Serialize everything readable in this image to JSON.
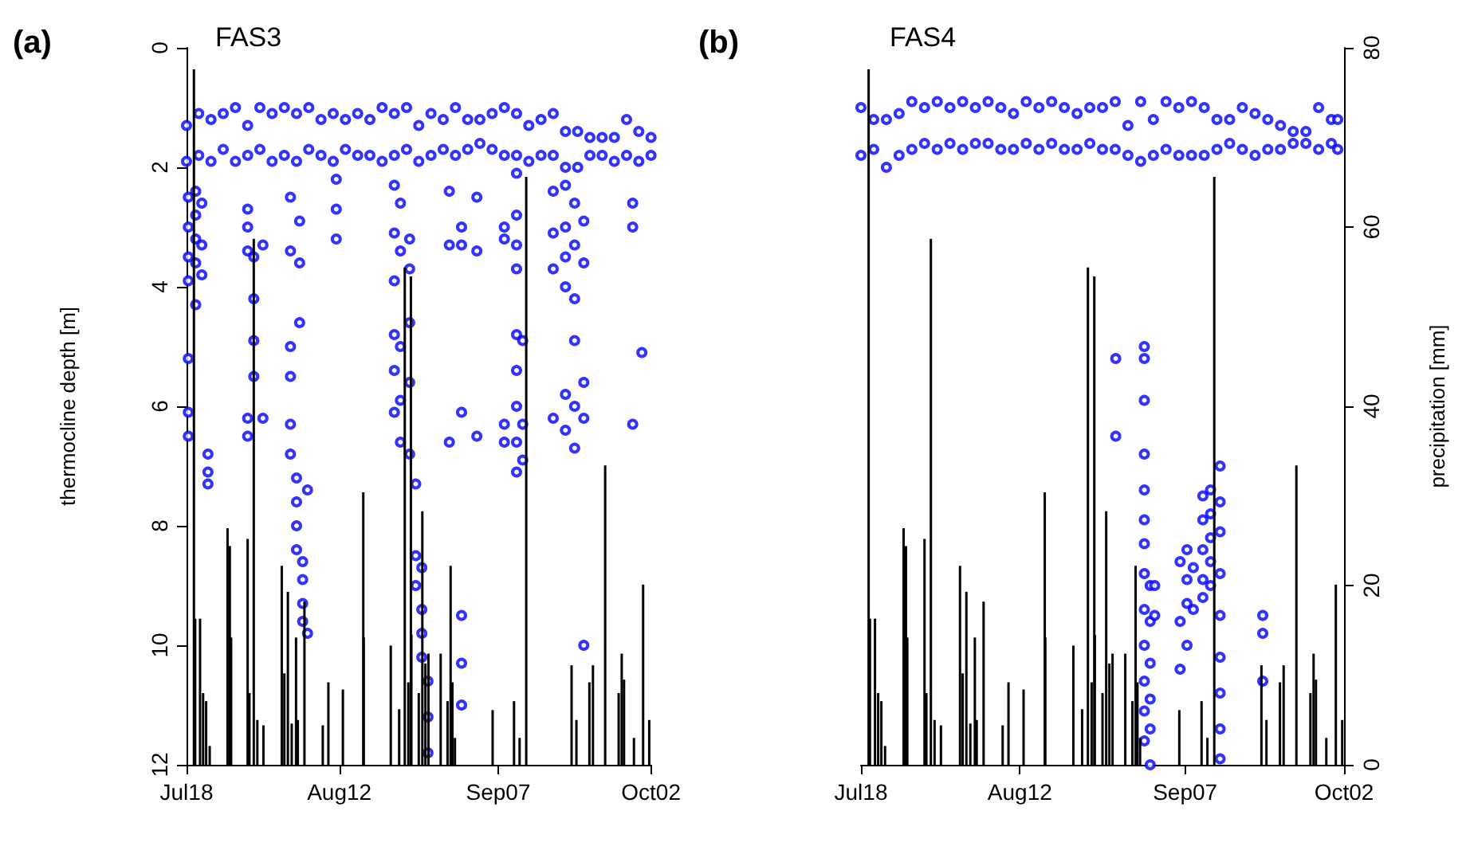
{
  "chart_data": [
    {
      "type": "scatter",
      "title": "(a)",
      "subtitle": "FAS3",
      "ylabel": "thermocline depth [m]",
      "xlim": [
        "--07-18",
        "--10-02"
      ],
      "xticks": [
        {
          "value": "--07-18",
          "label": "Jul18"
        },
        {
          "value": "--08-12",
          "label": "Aug12"
        },
        {
          "value": "--09-07",
          "label": "Sep07"
        },
        {
          "value": "--10-02",
          "label": "Oct02"
        }
      ],
      "ylim": [
        12,
        0
      ],
      "yticks": [
        0,
        2,
        4,
        6,
        8,
        10,
        12
      ],
      "y2lim": [
        0,
        80
      ],
      "tick_labels": "xy",
      "grid": false,
      "marker": "circle",
      "series": [
        {
          "color": "#0000ff",
          "x": [
            "--07-18",
            "--07-18",
            "--07-20",
            "--07-20",
            "--07-22",
            "--07-22",
            "--07-24",
            "--07-24",
            "--07-26",
            "--07-26",
            "--07-28",
            "--07-28",
            "--07-30",
            "--07-30",
            "--08-01",
            "--08-01",
            "--08-03",
            "--08-03",
            "--08-05",
            "--08-05",
            "--08-07",
            "--08-07",
            "--08-09",
            "--08-09",
            "--08-11",
            "--08-11",
            "--08-13",
            "--08-13",
            "--08-15",
            "--08-15",
            "--08-17",
            "--08-17",
            "--08-19",
            "--08-19",
            "--08-21",
            "--08-21",
            "--08-23",
            "--08-23",
            "--08-25",
            "--08-25",
            "--08-27",
            "--08-27",
            "--08-29",
            "--08-29",
            "--08-31",
            "--08-31",
            "--09-02",
            "--09-02",
            "--09-04",
            "--09-04",
            "--09-06",
            "--09-06",
            "--09-08",
            "--09-08",
            "--09-10",
            "--09-10",
            "--09-12",
            "--09-12",
            "--09-14",
            "--09-14",
            "--09-16",
            "--09-16",
            "--09-18",
            "--09-18",
            "--09-20",
            "--09-20",
            "--09-22",
            "--09-22",
            "--09-24",
            "--09-24",
            "--09-26",
            "--09-26",
            "--09-28",
            "--09-28",
            "--09-30",
            "--09-30",
            "--10-02",
            "--10-02"
          ],
          "values": [
            1.3,
            1.9,
            1.1,
            1.8,
            1.2,
            1.9,
            1.1,
            1.7,
            1.0,
            1.9,
            1.3,
            1.8,
            1.0,
            1.7,
            1.1,
            1.9,
            1.0,
            1.8,
            1.1,
            1.9,
            1.0,
            1.7,
            1.2,
            1.8,
            1.1,
            1.9,
            1.2,
            1.7,
            1.1,
            1.8,
            1.2,
            1.8,
            1.0,
            1.9,
            1.1,
            1.8,
            1.0,
            1.7,
            1.3,
            1.9,
            1.1,
            1.8,
            1.2,
            1.7,
            1.0,
            1.8,
            1.2,
            1.7,
            1.2,
            1.6,
            1.1,
            1.7,
            1.0,
            1.8,
            1.1,
            1.8,
            1.3,
            1.9,
            1.2,
            1.8,
            1.1,
            1.8,
            1.4,
            2.0,
            1.4,
            2.0,
            1.5,
            1.8,
            1.5,
            1.8,
            1.5,
            1.9,
            1.2,
            1.8,
            1.4,
            1.9,
            1.5,
            1.8
          ]
        },
        {
          "color": "#0000ff",
          "x": [
            "--07-18T07:00",
            "--07-18T07:00",
            "--07-18T07:00",
            "--07-18T07:00",
            "--07-18T07:00",
            "--07-18T07:00",
            "--07-18T07:00",
            "--07-19T12:00",
            "--07-19T12:00",
            "--07-19T12:00",
            "--07-19T12:00",
            "--07-19T12:00",
            "--07-20T12:00",
            "--07-20T12:00",
            "--07-20T12:00",
            "--07-21T12:00",
            "--07-21T12:00",
            "--07-21T12:00",
            "--07-28",
            "--07-28",
            "--07-28",
            "--07-28",
            "--07-28",
            "--07-29",
            "--07-29",
            "--07-29",
            "--07-29",
            "--07-30T12:00",
            "--07-30T12:00",
            "--08-04",
            "--08-04",
            "--08-04",
            "--08-04",
            "--08-04",
            "--08-04",
            "--08-05",
            "--08-05",
            "--08-05",
            "--08-05",
            "--08-05T12:00",
            "--08-05T12:00",
            "--08-05T12:00",
            "--08-06",
            "--08-06",
            "--08-06",
            "--08-06",
            "--08-06T19:00",
            "--08-06T19:00",
            "--08-11T12:00",
            "--08-11T12:00",
            "--08-11T12:00",
            "--08-21",
            "--08-21",
            "--08-21",
            "--08-21",
            "--08-21",
            "--08-21",
            "--08-22",
            "--08-22",
            "--08-22",
            "--08-22",
            "--08-22",
            "--08-23T12:00",
            "--08-23T12:00",
            "--08-23T12:00",
            "--08-23T12:00",
            "--08-23T12:00",
            "--08-24T12:00",
            "--08-24T12:00",
            "--08-24T12:00",
            "--08-25T12:00",
            "--08-25T12:00",
            "--08-25T12:00",
            "--08-25T12:00",
            "--08-26T12:00",
            "--08-26T12:00",
            "--08-26T12:00",
            "--08-30",
            "--08-30",
            "--08-30",
            "--09-01",
            "--09-01",
            "--09-01",
            "--09-01",
            "--09-01",
            "--09-01",
            "--09-03T12:00",
            "--09-03T12:00",
            "--09-03T12:00",
            "--09-08",
            "--09-08",
            "--09-08",
            "--09-08",
            "--09-10",
            "--09-10",
            "--09-10",
            "--09-10",
            "--09-10",
            "--09-10",
            "--09-10",
            "--09-10",
            "--09-10",
            "--09-11",
            "--09-11",
            "--09-11",
            "--09-16",
            "--09-16",
            "--09-16",
            "--09-16",
            "--09-18",
            "--09-18",
            "--09-18",
            "--09-18",
            "--09-18",
            "--09-18",
            "--09-19T12:00",
            "--09-19T12:00",
            "--09-19T12:00",
            "--09-19T12:00",
            "--09-19T12:00",
            "--09-19T12:00",
            "--09-21",
            "--09-21",
            "--09-21",
            "--09-21",
            "--09-21",
            "--09-29",
            "--09-29",
            "--09-29",
            "--09-30T12:00"
          ],
          "values": [
            2.5,
            3.0,
            3.5,
            3.9,
            5.2,
            6.1,
            6.5,
            2.4,
            2.8,
            3.2,
            3.6,
            4.3,
            2.6,
            3.3,
            3.8,
            6.8,
            7.1,
            7.3,
            2.7,
            3.0,
            3.4,
            6.2,
            6.5,
            3.5,
            4.2,
            4.9,
            5.5,
            3.3,
            6.2,
            2.5,
            3.4,
            5.0,
            5.5,
            6.3,
            6.8,
            7.2,
            7.6,
            8.0,
            8.4,
            2.9,
            3.6,
            4.6,
            8.6,
            8.9,
            9.3,
            9.6,
            7.4,
            9.8,
            2.2,
            2.7,
            3.2,
            2.3,
            3.1,
            3.9,
            4.8,
            5.4,
            6.1,
            2.6,
            3.4,
            5.0,
            5.9,
            6.6,
            3.2,
            3.7,
            4.6,
            5.6,
            6.8,
            7.3,
            8.5,
            9.0,
            8.7,
            9.4,
            9.8,
            10.2,
            10.6,
            11.2,
            11.8,
            2.4,
            3.3,
            6.6,
            3.0,
            3.3,
            6.1,
            9.5,
            10.3,
            11.0,
            2.5,
            3.4,
            6.5,
            3.0,
            3.2,
            6.3,
            6.6,
            2.1,
            2.8,
            3.3,
            3.7,
            4.8,
            5.4,
            6.0,
            6.6,
            7.1,
            4.9,
            6.3,
            6.9,
            2.4,
            3.1,
            3.7,
            6.2,
            2.3,
            3.0,
            3.5,
            4.0,
            5.8,
            6.4,
            2.6,
            3.3,
            4.2,
            4.9,
            6.0,
            6.7,
            2.9,
            3.6,
            5.6,
            6.2,
            10.0,
            2.6,
            3.0,
            6.3,
            5.1
          ]
        },
        {
          "type": "bar",
          "axis": "y2",
          "color": "#000000",
          "x": [
            "--07-19T05:00",
            "--07-19T10:00",
            "--07-20T05:00",
            "--07-20T17:00",
            "--07-21T05:00",
            "--07-21T19:00",
            "--07-24T17:00",
            "--07-25T02:00",
            "--07-25T07:00",
            "--07-28",
            "--07-28T07:00",
            "--07-29",
            "--07-29T14:00",
            "--07-30T14:00",
            "--08-02T14:00",
            "--08-03",
            "--08-03T14:00",
            "--08-04T05:00",
            "--08-04T22:00",
            "--08-05T05:00",
            "--08-06T07:00",
            "--08-09T07:00",
            "--08-10T05:00",
            "--08-12T14:00",
            "--08-15T22:00",
            "--08-16",
            "--08-20T10:00",
            "--08-21T19:00",
            "--08-22T17:00",
            "--08-23T07:00",
            "--08-23T17:00",
            "--08-23T19:00",
            "--08-25",
            "--08-25T14:00",
            "--08-26T02:00",
            "--08-26T14:00",
            "--08-28T14:00",
            "--08-29T17:00",
            "--08-30T05:00",
            "--08-30T12:00",
            "--08-30T22:00",
            "--09-06T02:00",
            "--09-09T14:00",
            "--09-10T12:00",
            "--09-11T14:00",
            "--09-19",
            "--09-19T19:00",
            "--09-21T22:00",
            "--09-22T12:00",
            "--09-24T12:00",
            "--09-26T17:00",
            "--09-27T05:00",
            "--09-27T14:00",
            "--09-29T05:00",
            "--09-30T17:00",
            "--10-01T17:00"
          ],
          "values": [
            77.6,
            16.3,
            16.3,
            8.0,
            7.1,
            2.1,
            26.4,
            24.4,
            14.2,
            25.2,
            8.0,
            58.7,
            5.0,
            4.4,
            22.2,
            10.2,
            19.3,
            4.6,
            14.2,
            5.0,
            18.2,
            4.4,
            9.2,
            8.4,
            30.4,
            14.2,
            13.3,
            6.2,
            55.5,
            9.2,
            54.5,
            14.5,
            8.0,
            28.3,
            11.3,
            12.4,
            12.4,
            7.1,
            22.2,
            9.2,
            3.0,
            6.1,
            7.1,
            3.0,
            65.6,
            11.1,
            5.0,
            9.2,
            11.1,
            33.4,
            8.0,
            12.4,
            9.5,
            3.0,
            20.1,
            5.0
          ]
        }
      ]
    },
    {
      "type": "scatter",
      "title": "(b)",
      "subtitle": "FAS4",
      "y2label": "precipitation [mm]",
      "xlim": [
        "--07-18",
        "--10-02"
      ],
      "xticks": [
        {
          "value": "--07-18",
          "label": "Jul18"
        },
        {
          "value": "--08-12",
          "label": "Aug12"
        },
        {
          "value": "--09-07",
          "label": "Sep07"
        },
        {
          "value": "--10-02",
          "label": "Oct02"
        }
      ],
      "ylim": [
        12,
        0
      ],
      "y2lim": [
        0,
        80
      ],
      "y2ticks": [
        0,
        20,
        40,
        60,
        80
      ],
      "tick_labels": "xy2",
      "grid": false,
      "marker": "circle",
      "series": [
        {
          "color": "#0000ff",
          "x": [
            "--07-18",
            "--07-18",
            "--07-20",
            "--07-20",
            "--07-22",
            "--07-22",
            "--07-24",
            "--07-24",
            "--07-26",
            "--07-26",
            "--07-28",
            "--07-28",
            "--07-30",
            "--07-30",
            "--08-01",
            "--08-01",
            "--08-03",
            "--08-03",
            "--08-05",
            "--08-05",
            "--08-07",
            "--08-07",
            "--08-09",
            "--08-09",
            "--08-11",
            "--08-11",
            "--08-13",
            "--08-13",
            "--08-15",
            "--08-15",
            "--08-17",
            "--08-17",
            "--08-19",
            "--08-19",
            "--08-21",
            "--08-21",
            "--08-23",
            "--08-23",
            "--08-25",
            "--08-25",
            "--08-27",
            "--08-27",
            "--08-29",
            "--08-29",
            "--08-31",
            "--08-31",
            "--09-02",
            "--09-02",
            "--09-04",
            "--09-04",
            "--09-06",
            "--09-06",
            "--09-08",
            "--09-08",
            "--09-10",
            "--09-10",
            "--09-12",
            "--09-12",
            "--09-14",
            "--09-14",
            "--09-16",
            "--09-16",
            "--09-18",
            "--09-18",
            "--09-20",
            "--09-20",
            "--09-22",
            "--09-22",
            "--09-24",
            "--09-24",
            "--09-26",
            "--09-26",
            "--09-28",
            "--09-28",
            "--09-30",
            "--09-30",
            "--10-01",
            "--10-01"
          ],
          "values": [
            1.0,
            1.8,
            1.2,
            1.7,
            1.2,
            2.0,
            1.1,
            1.8,
            0.9,
            1.7,
            1.0,
            1.6,
            0.9,
            1.7,
            1.0,
            1.6,
            0.9,
            1.7,
            1.0,
            1.6,
            0.9,
            1.6,
            1.0,
            1.7,
            1.1,
            1.7,
            0.9,
            1.6,
            1.0,
            1.7,
            0.9,
            1.6,
            1.0,
            1.7,
            1.1,
            1.7,
            1.0,
            1.6,
            1.0,
            1.7,
            0.9,
            1.7,
            1.3,
            1.8,
            0.9,
            1.9,
            1.2,
            1.8,
            0.9,
            1.7,
            1.0,
            1.8,
            0.9,
            1.8,
            1.0,
            1.8,
            1.2,
            1.7,
            1.2,
            1.6,
            1.0,
            1.7,
            1.1,
            1.8,
            1.2,
            1.7,
            1.3,
            1.7,
            1.4,
            1.6,
            1.4,
            1.6,
            1.0,
            1.7,
            1.2,
            1.6,
            1.2,
            1.7
          ]
        },
        {
          "color": "#0000ff",
          "x": [
            "--08-27T02:00",
            "--08-27T02:00",
            "--08-31T14:00",
            "--08-31T14:00",
            "--08-31T14:00",
            "--08-31T14:00",
            "--08-31T14:00",
            "--08-31T14:00",
            "--08-31T14:00",
            "--08-31T14:00",
            "--08-31T14:00",
            "--08-31T14:00",
            "--08-31T14:00",
            "--08-31T14:00",
            "--08-31T14:00",
            "--09-01T12:00",
            "--09-01T12:00",
            "--09-01T12:00",
            "--09-01T12:00",
            "--09-01T12:00",
            "--09-01T12:00",
            "--09-02T05:00",
            "--09-02T05:00",
            "--09-06T05:00",
            "--09-06T05:00",
            "--09-06T05:00",
            "--09-07T07:00",
            "--09-07T07:00",
            "--09-07T07:00",
            "--09-07T07:00",
            "--09-08T07:00",
            "--09-08T07:00",
            "--09-09T19:00",
            "--09-09T19:00",
            "--09-09T19:00",
            "--09-09T19:00",
            "--09-09T19:00",
            "--09-11",
            "--09-11",
            "--09-11",
            "--09-11",
            "--09-11",
            "--09-12T12:00",
            "--09-12T12:00",
            "--09-12T12:00",
            "--09-12T12:00",
            "--09-12T12:00",
            "--09-12T12:00",
            "--09-12T12:00",
            "--09-12T12:00",
            "--09-12T12:00",
            "--09-19T05:00",
            "--09-19T05:00",
            "--09-19T05:00"
          ],
          "values": [
            5.2,
            6.5,
            5.0,
            5.2,
            5.9,
            6.8,
            7.4,
            7.9,
            8.3,
            8.8,
            9.4,
            10.0,
            10.6,
            11.1,
            11.6,
            9.0,
            9.6,
            10.3,
            10.9,
            11.4,
            12.0,
            9.0,
            9.5,
            8.6,
            9.6,
            10.4,
            8.4,
            8.9,
            9.3,
            10.0,
            8.7,
            9.4,
            7.5,
            7.9,
            8.4,
            8.9,
            9.2,
            7.4,
            7.8,
            8.2,
            8.6,
            9.0,
            7.0,
            7.6,
            8.1,
            8.8,
            9.5,
            10.2,
            10.8,
            11.4,
            11.9,
            9.5,
            9.8,
            10.6
          ]
        },
        {
          "type": "bar",
          "axis": "y2",
          "color": "#000000",
          "x": [
            "--07-19T05:00",
            "--07-19T10:00",
            "--07-20T05:00",
            "--07-20T17:00",
            "--07-21T05:00",
            "--07-21T19:00",
            "--07-24T17:00",
            "--07-25T02:00",
            "--07-25T07:00",
            "--07-28",
            "--07-28T07:00",
            "--07-29",
            "--07-29T14:00",
            "--07-30T14:00",
            "--08-02T14:00",
            "--08-03",
            "--08-03T14:00",
            "--08-04T05:00",
            "--08-04T22:00",
            "--08-05T05:00",
            "--08-06T07:00",
            "--08-09T07:00",
            "--08-10T05:00",
            "--08-12T14:00",
            "--08-15T22:00",
            "--08-16",
            "--08-20T10:00",
            "--08-21T19:00",
            "--08-22T17:00",
            "--08-23T07:00",
            "--08-23T17:00",
            "--08-23T19:00",
            "--08-25",
            "--08-25T14:00",
            "--08-26T02:00",
            "--08-26T14:00",
            "--08-28T14:00",
            "--08-29T17:00",
            "--08-30T05:00",
            "--08-30T12:00",
            "--08-30T22:00",
            "--09-06T02:00",
            "--09-09T14:00",
            "--09-10T12:00",
            "--09-11T14:00",
            "--09-19",
            "--09-19T19:00",
            "--09-21T22:00",
            "--09-22T12:00",
            "--09-24T12:00",
            "--09-26T17:00",
            "--09-27T05:00",
            "--09-27T14:00",
            "--09-29T05:00",
            "--09-30T17:00",
            "--10-01T17:00"
          ],
          "values": [
            77.6,
            16.3,
            16.3,
            8.0,
            7.1,
            2.1,
            26.4,
            24.4,
            14.2,
            25.2,
            8.0,
            58.7,
            5.0,
            4.4,
            22.2,
            10.2,
            19.3,
            4.6,
            14.2,
            5.0,
            18.2,
            4.4,
            9.2,
            8.4,
            30.4,
            14.2,
            13.3,
            6.2,
            55.5,
            9.2,
            54.5,
            14.5,
            8.0,
            28.3,
            11.3,
            12.4,
            12.4,
            7.1,
            22.2,
            9.2,
            3.0,
            6.1,
            7.1,
            3.0,
            65.6,
            11.1,
            5.0,
            9.2,
            11.1,
            33.4,
            8.0,
            12.4,
            9.5,
            3.0,
            20.1,
            5.0
          ]
        }
      ]
    }
  ]
}
